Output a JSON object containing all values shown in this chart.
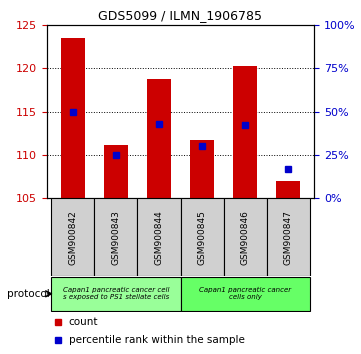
{
  "title": "GDS5099 / ILMN_1906785",
  "samples": [
    "GSM900842",
    "GSM900843",
    "GSM900844",
    "GSM900845",
    "GSM900846",
    "GSM900847"
  ],
  "count_values": [
    123.5,
    111.1,
    118.7,
    111.7,
    120.3,
    107.0
  ],
  "count_base": 105,
  "percentile_values": [
    50,
    25,
    43,
    30,
    42,
    17
  ],
  "ylim_left": [
    105,
    125
  ],
  "yticks_left": [
    105,
    110,
    115,
    120,
    125
  ],
  "ylim_right": [
    0,
    100
  ],
  "yticks_right": [
    0,
    25,
    50,
    75,
    100
  ],
  "bar_color": "#cc0000",
  "percentile_color": "#0000cc",
  "bar_width": 0.55,
  "group1_color": "#99ff99",
  "group2_color": "#66ff66",
  "group1_label": "Capan1 pancreatic cancer cell\ns exposed to PS1 stellate cells",
  "group2_label": "Capan1 pancreatic cancer\ncells only",
  "protocol_label": "protocol",
  "legend_count_label": "count",
  "legend_percentile_label": "percentile rank within the sample",
  "background_color": "#ffffff",
  "left_tick_color": "#cc0000",
  "right_tick_color": "#0000cc",
  "dotted_yticks": [
    110,
    115,
    120
  ],
  "gray_box_color": "#d0d0d0",
  "title_fontsize": 9
}
